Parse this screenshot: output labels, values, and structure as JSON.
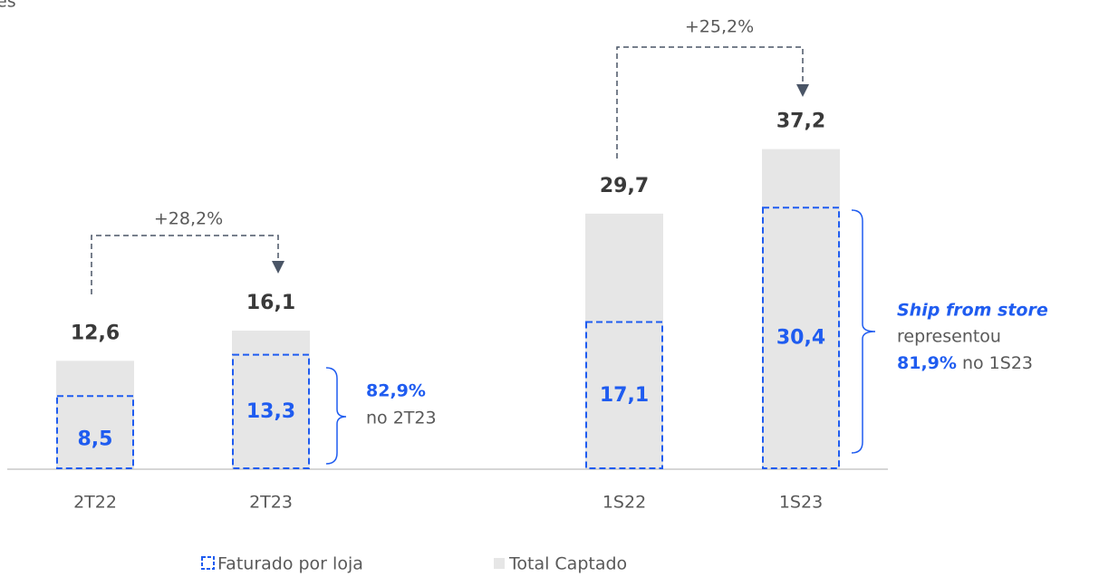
{
  "chart_data": {
    "type": "bar",
    "title": "es",
    "categories": [
      "2T22",
      "2T23",
      "1S22",
      "1S23"
    ],
    "series": [
      {
        "name": "Total Captado",
        "color": "#e6e6e6",
        "values": [
          12.6,
          16.1,
          29.7,
          37.2
        ],
        "value_labels": [
          "12,6",
          "16,1",
          "29,7",
          "37,2"
        ]
      },
      {
        "name": "Faturado por loja",
        "color": "#1f5cf0",
        "values": [
          8.5,
          13.3,
          17.1,
          30.4
        ],
        "value_labels": [
          "8,5",
          "13,3",
          "17,1",
          "30,4"
        ]
      }
    ],
    "growth": [
      "+28,2%",
      "+25,2%"
    ],
    "callouts": [
      {
        "value": "82,9%",
        "text": "no 2T23"
      },
      {
        "heading": "Ship from store",
        "text": "representou",
        "value": "81,9%",
        "suffix": "no 1S23"
      }
    ]
  }
}
